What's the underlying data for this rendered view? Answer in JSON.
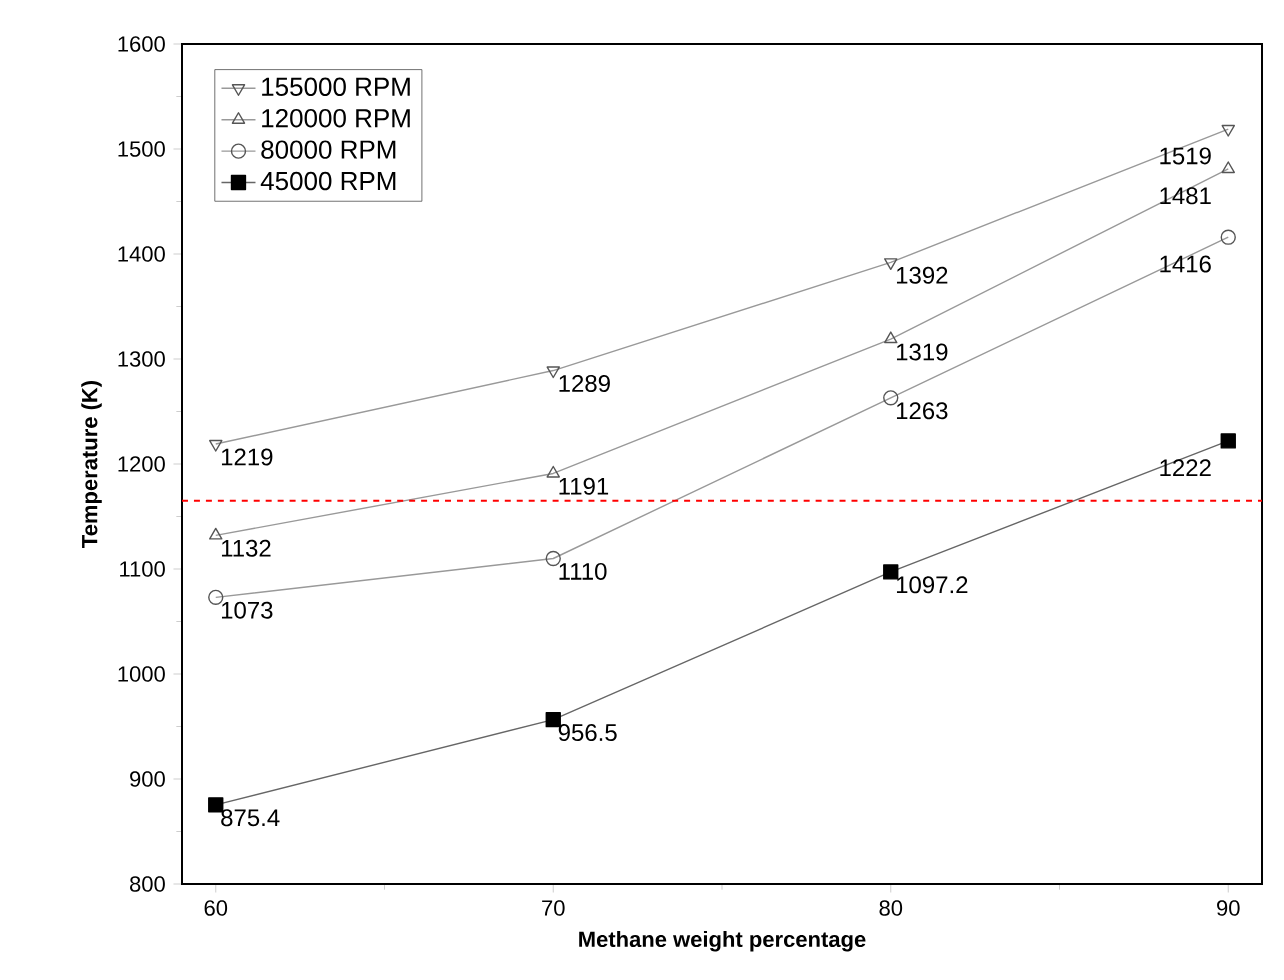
{
  "chart_data": {
    "type": "line",
    "xlabel": "Methane weight percentage",
    "ylabel": "Temperature (K)",
    "x": [
      60,
      70,
      80,
      90
    ],
    "series": [
      {
        "name": "155000 RPM",
        "color": "#555555",
        "marker": "triangle-down",
        "values": [
          1219,
          1289,
          1392,
          1519
        ]
      },
      {
        "name": "120000 RPM",
        "color": "#555555",
        "marker": "triangle",
        "values": [
          1132,
          1191,
          1319,
          1481
        ]
      },
      {
        "name": "80000 RPM",
        "color": "#555555",
        "marker": "circle",
        "values": [
          1073,
          1110,
          1263,
          1416
        ]
      },
      {
        "name": "45000 RPM",
        "color": "#000000",
        "marker": "square",
        "values": [
          875.4,
          956.5,
          1097.2,
          1222
        ]
      }
    ],
    "xlim": [
      59,
      91
    ],
    "xticks": [
      60,
      70,
      80,
      90
    ],
    "ylim": [
      800,
      1600
    ],
    "yticks": [
      800,
      900,
      1000,
      1100,
      1200,
      1300,
      1400,
      1500,
      1600
    ],
    "ref_lines": [
      {
        "axis": "y",
        "value": 1165,
        "color": "#ff0000",
        "line_style": "dashed"
      }
    ],
    "data_labels": true,
    "legend": "top left",
    "grid": false,
    "line_style": "solid"
  }
}
